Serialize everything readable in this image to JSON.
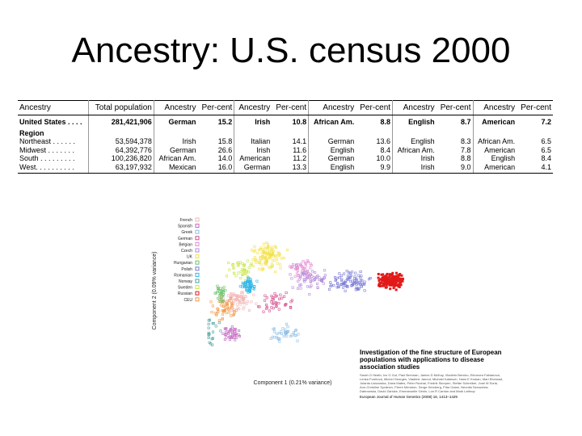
{
  "slide": {
    "title": "Ancestry: U.S. census 2000"
  },
  "table": {
    "headers": [
      "Ancestry",
      "Total population",
      "Ancestry",
      "Per-cent",
      "Ancestry",
      "Per-cent",
      "Ancestry",
      "Per-cent",
      "Ancestry",
      "Per-cent",
      "Ancestry",
      "Per-cent"
    ],
    "us_row": [
      "United States . . . .",
      "281,421,906",
      "German",
      "15.2",
      "Irish",
      "10.8",
      "African Am.",
      "8.8",
      "English",
      "8.7",
      "American",
      "7.2"
    ],
    "region_label": "Region",
    "region_rows": [
      [
        "Northeast . . . . . .",
        "53,594,378",
        "Irish",
        "15.8",
        "Italian",
        "14.1",
        "German",
        "13.6",
        "English",
        "8.3",
        "African Am.",
        "6.5"
      ],
      [
        "Midwest . . . . . . .",
        "64,392,776",
        "German",
        "26.6",
        "Irish",
        "11.6",
        "English",
        "8.4",
        "African Am.",
        "7.8",
        "American",
        "6.5"
      ],
      [
        "South . . . . . . . . .",
        "100,236,820",
        "African Am.",
        "14.0",
        "American",
        "11.2",
        "German",
        "10.0",
        "Irish",
        "8.8",
        "English",
        "8.4"
      ],
      [
        "West. . . . . . . . . .",
        "63,197,932",
        "Mexican",
        "16.0",
        "German",
        "13.3",
        "English",
        "9.9",
        "Irish",
        "9.0",
        "American",
        "4.1"
      ]
    ]
  },
  "figure": {
    "legend": [
      {
        "label": "French",
        "color": "#f2b6b6"
      },
      {
        "label": "Spanish",
        "color": "#c266c2"
      },
      {
        "label": "Greek",
        "color": "#8fbfe6"
      },
      {
        "label": "German",
        "color": "#d04a8a"
      },
      {
        "label": "Belgian",
        "color": "#e28ad0"
      },
      {
        "label": "Czech",
        "color": "#b58bd9"
      },
      {
        "label": "UK",
        "color": "#f2e14a"
      },
      {
        "label": "Hungarian",
        "color": "#6bc36b"
      },
      {
        "label": "Polish",
        "color": "#7a7ad6"
      },
      {
        "label": "Romanian",
        "color": "#2fb7e8"
      },
      {
        "label": "Norway",
        "color": "#4aa0a0"
      },
      {
        "label": "Sweden",
        "color": "#c7e64a"
      },
      {
        "label": "Russian",
        "color": "#e21a1a"
      },
      {
        "label": "CEU",
        "color": "#f29a4a"
      }
    ],
    "xlabel": "Component 1 (0.21% variance)",
    "ylabel": "Component 2 (0.09% variance)"
  },
  "paper": {
    "title": "Investigation of the fine structure of European populations with applications to disease association studies",
    "authors": "Sarah O Heath, Ivo G Gut, Paul Brennan, James D McKay, Vladimir Bencko, Eleonora Fabianova, Lenka Foretova, Michel Georges, Vladimir Janout, Michael Kabesch, Hans E Krokan, Mari Elvestad, Jolanta Lissowska, Dana Mates, Peter Rudnai, Fredrik Skorpen, Stefan Schreiber, José M Soria, Ann-Christine Syvänen, Pierre Meneton, Serge Hercberg, Pilar Galan, Neonila Szeszenia-Dabrowska, David Zaridze, Emmanuelle Génin, Lon R Cardon and Mark Lathrop",
    "journal": "European Journal of Human Genetics (2008) 16, 1413–1429"
  }
}
